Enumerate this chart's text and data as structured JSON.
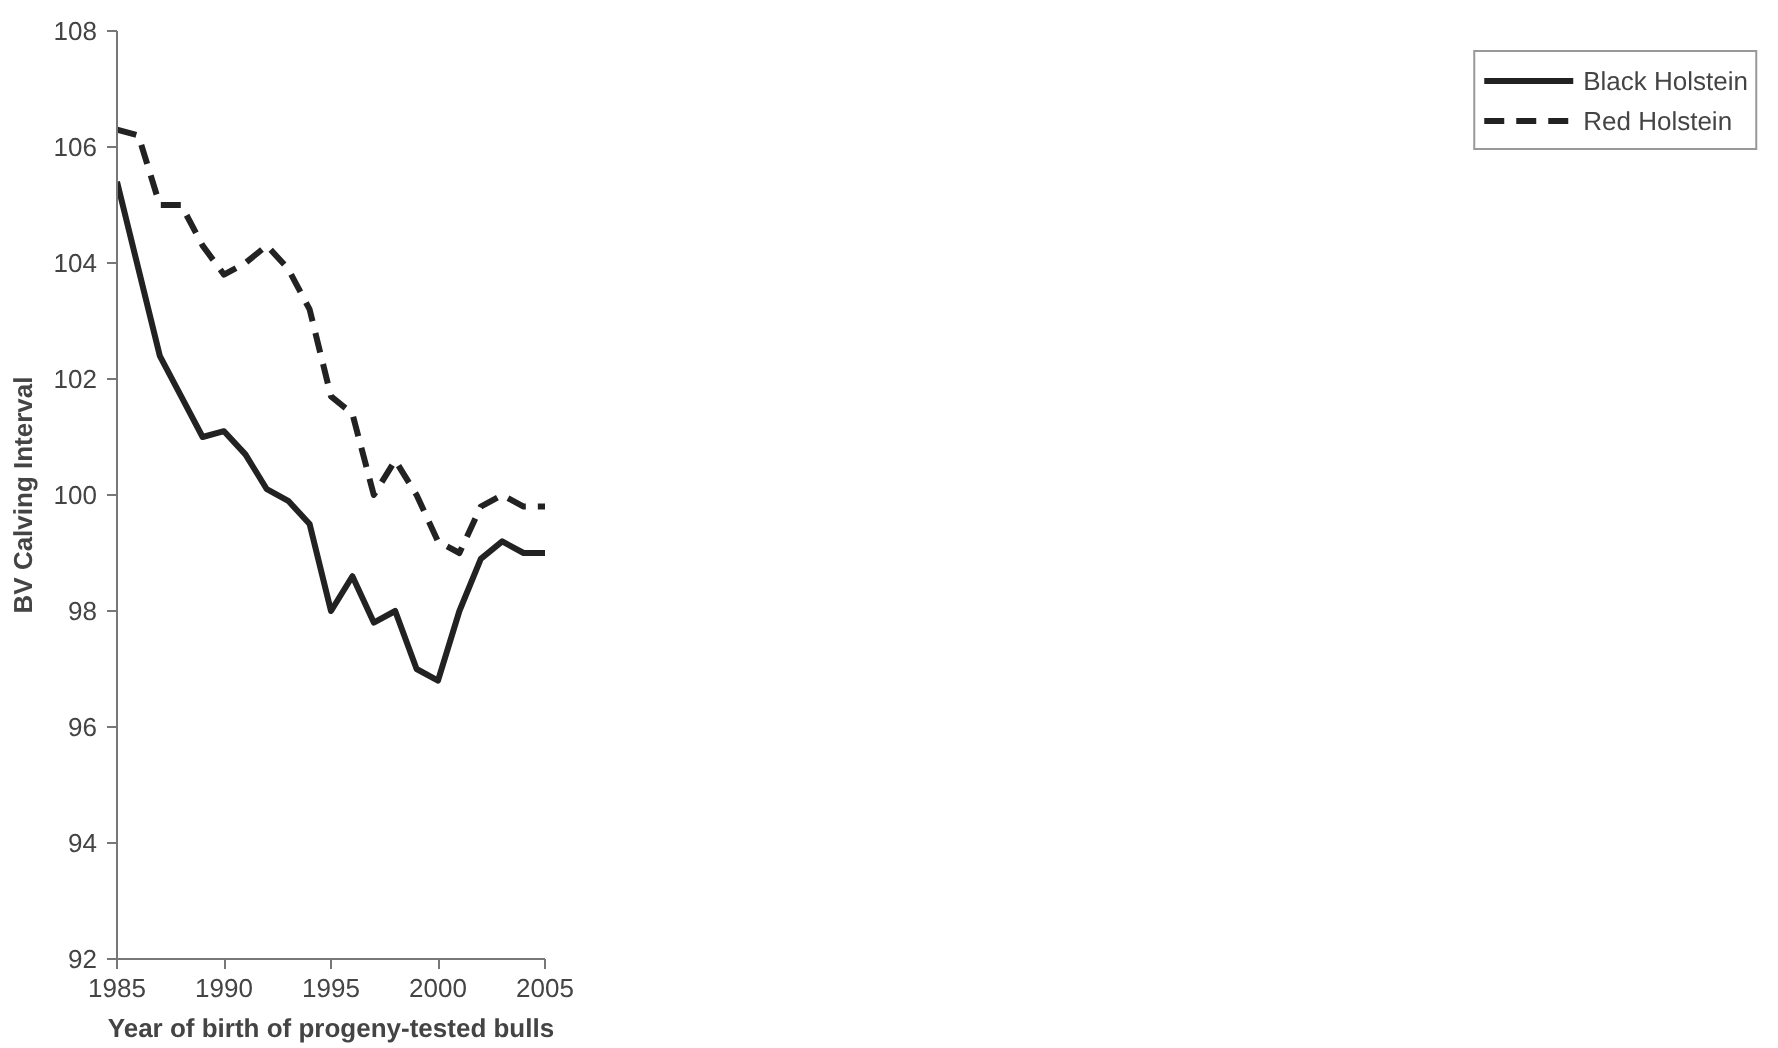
{
  "chart_data": {
    "type": "line",
    "xlabel": "Year of birth of progeny-tested bulls",
    "ylabel": "BV Calving Interval",
    "x": [
      1985,
      1986,
      1987,
      1988,
      1989,
      1990,
      1991,
      1992,
      1993,
      1994,
      1995,
      1996,
      1997,
      1998,
      1999,
      2000,
      2001,
      2002,
      2003,
      2004,
      2005
    ],
    "series": [
      {
        "name": "Black Holstein",
        "color": "#222222",
        "line_style": "solid",
        "values": [
          105.4,
          103.9,
          102.4,
          101.7,
          101.0,
          101.1,
          100.7,
          100.1,
          99.9,
          99.5,
          98.0,
          98.6,
          97.8,
          98.0,
          97.0,
          96.8,
          98.0,
          98.9,
          99.2,
          99.0,
          99.0
        ]
      },
      {
        "name": "Red Holstein",
        "color": "#222222",
        "line_style": "dashed",
        "values": [
          106.3,
          106.2,
          105.0,
          105.0,
          104.3,
          103.8,
          104.0,
          104.3,
          103.9,
          103.2,
          101.7,
          101.4,
          100.0,
          100.6,
          100.0,
          99.2,
          99.0,
          99.8,
          100.0,
          99.8,
          99.8
        ]
      }
    ],
    "xlim": [
      1985,
      2005
    ],
    "xticks": [
      1985,
      1990,
      1995,
      2000,
      2005
    ],
    "ylim": [
      92,
      108
    ],
    "yticks": [
      92,
      94,
      96,
      98,
      100,
      102,
      104,
      106,
      108
    ],
    "grid": false,
    "legend": "right",
    "marker": "none"
  }
}
